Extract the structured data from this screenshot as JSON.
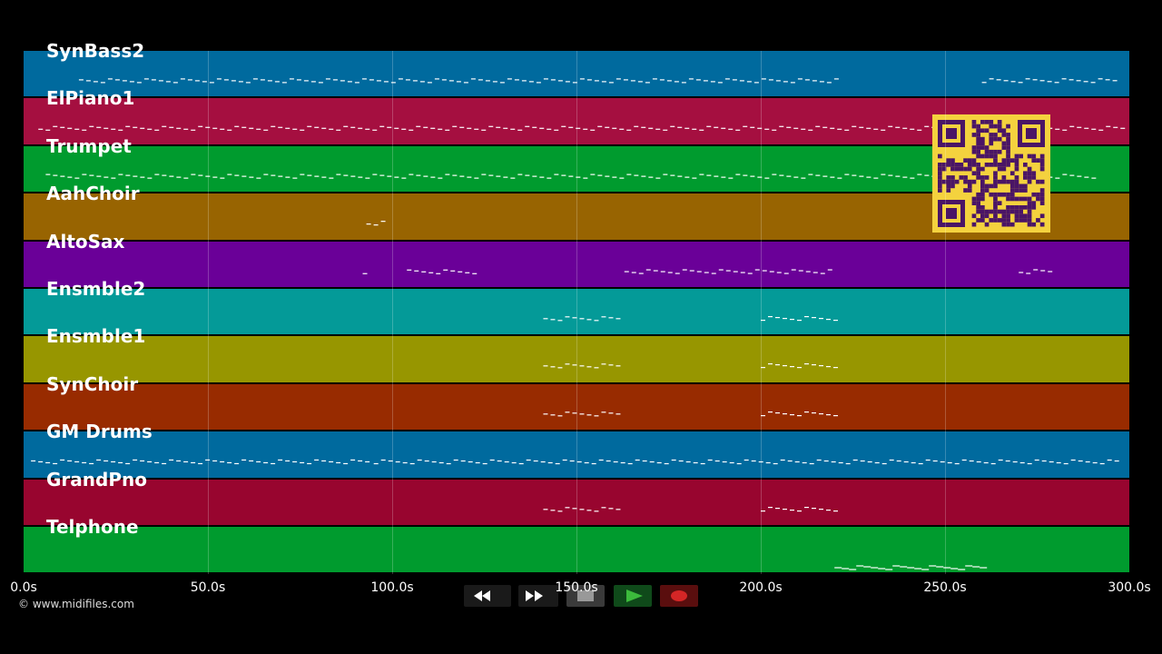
{
  "tracks": [
    {
      "name": "SynBass2",
      "color": "#006a9e"
    },
    {
      "name": "ElPiano1",
      "color": "#a50f40"
    },
    {
      "name": "Trumpet",
      "color": "#009b2e"
    },
    {
      "name": "AahChoir",
      "color": "#986401"
    },
    {
      "name": "AltoSax",
      "color": "#6a0098"
    },
    {
      "name": "Ensmble2",
      "color": "#049a98"
    },
    {
      "name": "Ensmble1",
      "color": "#979600"
    },
    {
      "name": "SynChoir",
      "color": "#982b00"
    },
    {
      "name": "GM Drums",
      "color": "#006a9e"
    },
    {
      "name": "GrandPno",
      "color": "#98052f"
    },
    {
      "name": "Telphone",
      "color": "#009b2e"
    }
  ],
  "time_axis": {
    "min": 0,
    "max": 300,
    "ticks": [
      "0.0s",
      "50.0s",
      "100.0s",
      "150.0s",
      "200.0s",
      "250.0s",
      "300.0s"
    ]
  },
  "copyright": "© www.midifiles.com",
  "transport": {
    "buttons": [
      {
        "name": "rewind",
        "icon": "rewind-icon"
      },
      {
        "name": "fast-forward",
        "icon": "fast-forward-icon"
      },
      {
        "name": "stop",
        "icon": "stop-icon"
      },
      {
        "name": "play",
        "icon": "play-icon"
      },
      {
        "name": "record",
        "icon": "record-icon"
      }
    ]
  },
  "qr_code": {
    "color": "#f4d23e",
    "foreground": "#4a1566"
  }
}
